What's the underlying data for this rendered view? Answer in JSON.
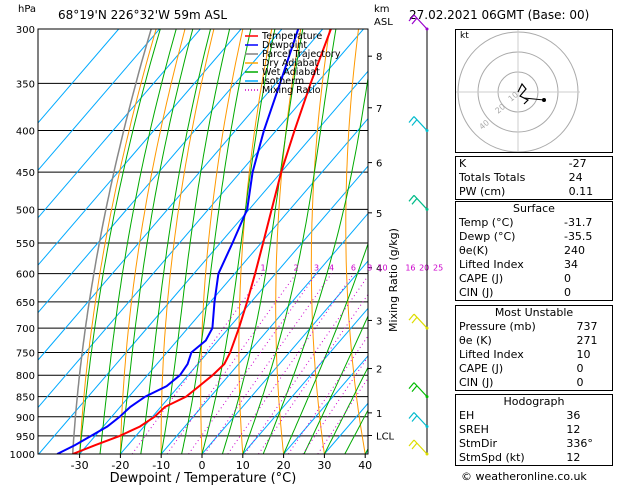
{
  "header": {
    "station": "68°19'N  226°32'W  59m  ASL",
    "datetime": "27.02.2021  06GMT  (Base: 00)",
    "hpa_label": "hPa",
    "km_label": "km",
    "asl_label": "ASL"
  },
  "footer": {
    "copyright": "© weatheronline.co.uk"
  },
  "chart_data": {
    "type": "line",
    "title": "",
    "xlabel": "Dewpoint / Temperature (°C)",
    "ylabel": "hPa",
    "right_label": "Mixing Ratio (g/kg)",
    "x_ticks": [
      -30,
      -20,
      -10,
      0,
      10,
      20,
      30,
      40
    ],
    "pressure_levels": [
      300,
      350,
      400,
      450,
      500,
      550,
      600,
      650,
      700,
      750,
      800,
      850,
      900,
      950,
      1000
    ],
    "km_ticks": [
      {
        "label": "8",
        "p": 324
      },
      {
        "label": "7",
        "p": 375
      },
      {
        "label": "6",
        "p": 438
      },
      {
        "label": "5",
        "p": 505
      },
      {
        "label": "4",
        "p": 590
      },
      {
        "label": "3",
        "p": 685
      },
      {
        "label": "2",
        "p": 785
      },
      {
        "label": "1",
        "p": 890
      },
      {
        "label": "LCL",
        "p": 949
      }
    ],
    "mixing_ratio_labels": [
      "1",
      "2",
      "3",
      "4",
      "6",
      "8",
      "10",
      "16",
      "20",
      "25"
    ],
    "mixing_ratio_values": [
      1,
      2,
      3,
      4,
      6,
      8,
      10,
      16,
      20,
      25
    ],
    "legend": [
      {
        "name": "Temperature",
        "color": "#ff0000",
        "style": "solid"
      },
      {
        "name": "Dewpoint",
        "color": "#0000ff",
        "style": "solid"
      },
      {
        "name": "Parcel Trajectory",
        "color": "#808080",
        "style": "solid"
      },
      {
        "name": "Dry Adiabat",
        "color": "#ffa500",
        "style": "solid"
      },
      {
        "name": "Wet Adiabat",
        "color": "#00aa00",
        "style": "solid"
      },
      {
        "name": "Isotherm",
        "color": "#00aaff",
        "style": "solid"
      },
      {
        "name": "Mixing Ratio",
        "color": "#cc00cc",
        "style": "dotted"
      }
    ],
    "temperature": [
      {
        "p": 1000,
        "t": -31.7
      },
      {
        "p": 975,
        "t": -28
      },
      {
        "p": 950,
        "t": -24
      },
      {
        "p": 925,
        "t": -21
      },
      {
        "p": 900,
        "t": -19.5
      },
      {
        "p": 875,
        "t": -19
      },
      {
        "p": 850,
        "t": -16
      },
      {
        "p": 825,
        "t": -15
      },
      {
        "p": 800,
        "t": -14
      },
      {
        "p": 775,
        "t": -13.5
      },
      {
        "p": 750,
        "t": -14.5
      },
      {
        "p": 700,
        "t": -17.5
      },
      {
        "p": 650,
        "t": -21
      },
      {
        "p": 600,
        "t": -25
      },
      {
        "p": 550,
        "t": -29.5
      },
      {
        "p": 500,
        "t": -34.5
      },
      {
        "p": 450,
        "t": -40
      },
      {
        "p": 400,
        "t": -45.5
      },
      {
        "p": 350,
        "t": -51.5
      },
      {
        "p": 300,
        "t": -58
      }
    ],
    "dewpoint": [
      {
        "p": 1000,
        "t": -35.5
      },
      {
        "p": 975,
        "t": -33
      },
      {
        "p": 950,
        "t": -31
      },
      {
        "p": 925,
        "t": -29
      },
      {
        "p": 900,
        "t": -28
      },
      {
        "p": 875,
        "t": -27.5
      },
      {
        "p": 850,
        "t": -26
      },
      {
        "p": 825,
        "t": -23
      },
      {
        "p": 800,
        "t": -22
      },
      {
        "p": 775,
        "t": -22.5
      },
      {
        "p": 750,
        "t": -24
      },
      {
        "p": 725,
        "t": -23
      },
      {
        "p": 700,
        "t": -24
      },
      {
        "p": 650,
        "t": -29
      },
      {
        "p": 600,
        "t": -34
      },
      {
        "p": 550,
        "t": -37
      },
      {
        "p": 500,
        "t": -40.5
      },
      {
        "p": 450,
        "t": -47
      },
      {
        "p": 400,
        "t": -53
      },
      {
        "p": 350,
        "t": -59
      },
      {
        "p": 300,
        "t": -66
      }
    ],
    "wind_barbs": [
      {
        "p": 300,
        "color": "#9900cc"
      },
      {
        "p": 400,
        "color": "#00bbcc"
      },
      {
        "p": 500,
        "color": "#00bb88"
      },
      {
        "p": 700,
        "color": "#dddd00"
      },
      {
        "p": 850,
        "color": "#00bb00"
      },
      {
        "p": 925,
        "color": "#00bbcc"
      },
      {
        "p": 1000,
        "color": "#dddd00"
      }
    ]
  },
  "hodograph": {
    "unit_label": "kt",
    "ring_labels": [
      "10",
      "20",
      "40"
    ]
  },
  "indices": {
    "k_label": "K",
    "k_value": "-27",
    "tt_label": "Totals Totals",
    "tt_value": "24",
    "pw_label": "PW (cm)",
    "pw_value": "0.11",
    "surface_title": "Surface",
    "s_temp_label": "Temp (°C)",
    "s_temp_value": "-31.7",
    "s_dewp_label": "Dewp (°C)",
    "s_dewp_value": "-35.5",
    "s_theta_label": "θe(K)",
    "s_theta_value": "240",
    "s_li_label": "Lifted Index",
    "s_li_value": "34",
    "s_cape_label": "CAPE (J)",
    "s_cape_value": "0",
    "s_cin_label": "CIN (J)",
    "s_cin_value": "0",
    "mu_title": "Most Unstable",
    "mu_p_label": "Pressure (mb)",
    "mu_p_value": "737",
    "mu_theta_label": "θe (K)",
    "mu_theta_value": "271",
    "mu_li_label": "Lifted Index",
    "mu_li_value": "10",
    "mu_cape_label": "CAPE (J)",
    "mu_cape_value": "0",
    "mu_cin_label": "CIN (J)",
    "mu_cin_value": "0",
    "hodo_title": "Hodograph",
    "eh_label": "EH",
    "eh_value": "36",
    "sreh_label": "SREH",
    "sreh_value": "12",
    "stmdir_label": "StmDir",
    "stmdir_value": "336°",
    "stmspd_label": "StmSpd (kt)",
    "stmspd_value": "12"
  }
}
